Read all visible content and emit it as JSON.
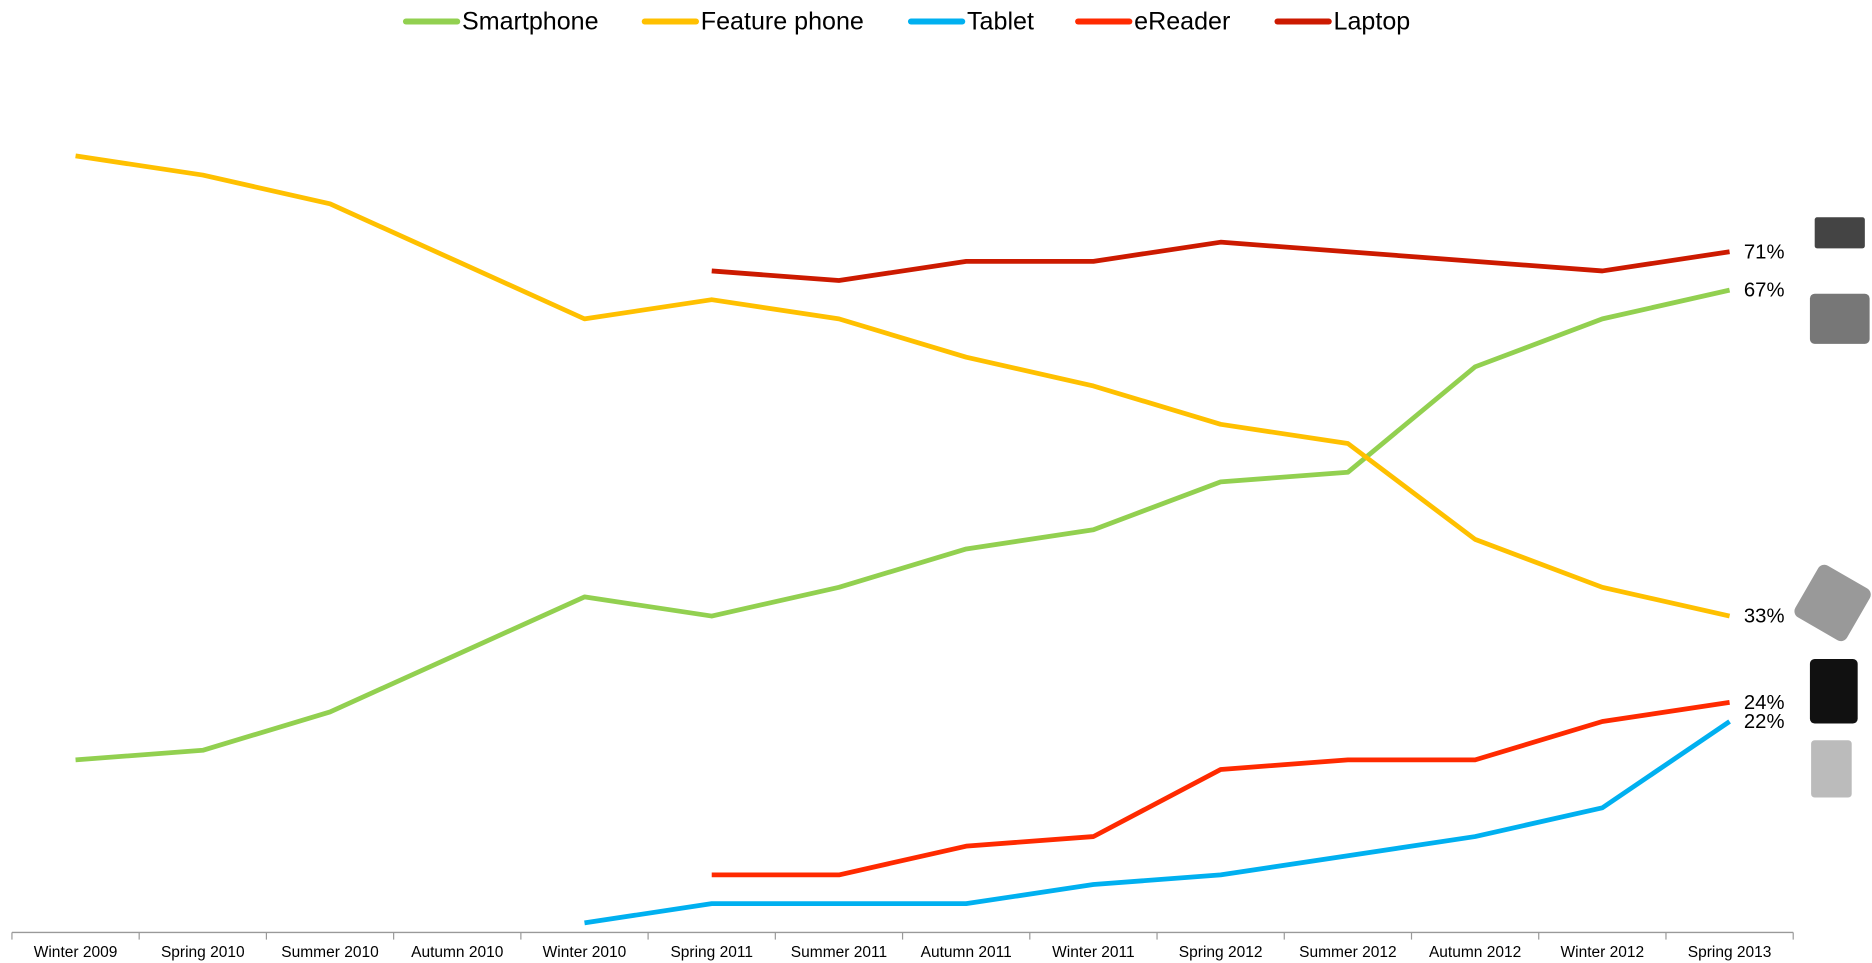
{
  "chart_data": {
    "type": "line",
    "categories": [
      "Winter 2009",
      "Spring 2010",
      "Summer 2010",
      "Autumn 2010",
      "Winter 2010",
      "Spring 2011",
      "Summer 2011",
      "Autumn 2011",
      "Winter 2011",
      "Spring 2012",
      "Summer 2012",
      "Autumn 2012",
      "Winter 2012",
      "Spring 2013"
    ],
    "ylim": [
      0,
      90
    ],
    "legend": "top",
    "series": [
      {
        "name": "Smartphone",
        "color": "#92d050",
        "values": [
          18,
          19,
          23,
          29,
          35,
          33,
          36,
          40,
          42,
          47,
          48,
          59,
          64,
          67
        ],
        "value_labels": [
          null,
          null,
          null,
          null,
          null,
          null,
          null,
          null,
          null,
          null,
          null,
          null,
          null,
          "67%"
        ]
      },
      {
        "name": "Feature phone",
        "color": "#ffc000",
        "values": [
          81,
          79,
          76,
          70,
          64,
          66,
          64,
          60,
          57,
          53,
          51,
          41,
          36,
          33
        ],
        "value_labels": [
          null,
          null,
          null,
          null,
          null,
          null,
          null,
          null,
          null,
          null,
          null,
          null,
          null,
          "33%"
        ]
      },
      {
        "name": "Tablet",
        "color": "#00b0f0",
        "values": [
          null,
          null,
          null,
          null,
          1,
          3,
          3,
          3,
          5,
          6,
          8,
          10,
          13,
          22
        ],
        "value_labels": [
          null,
          null,
          null,
          null,
          null,
          null,
          null,
          null,
          null,
          null,
          null,
          null,
          null,
          "22%"
        ]
      },
      {
        "name": "eReader",
        "color": "#ff2a00",
        "values": [
          null,
          null,
          null,
          null,
          null,
          6,
          6,
          9,
          10,
          17,
          18,
          18,
          22,
          24
        ],
        "value_labels": [
          null,
          null,
          null,
          null,
          null,
          null,
          null,
          null,
          null,
          null,
          null,
          null,
          null,
          "24%"
        ]
      },
      {
        "name": "Laptop",
        "color": "#cc1a00",
        "values": [
          null,
          null,
          null,
          null,
          null,
          69,
          68,
          70,
          70,
          72,
          71,
          70,
          69,
          71
        ],
        "value_labels": [
          null,
          null,
          null,
          null,
          null,
          null,
          null,
          null,
          null,
          null,
          null,
          null,
          null,
          "71%"
        ]
      }
    ]
  }
}
